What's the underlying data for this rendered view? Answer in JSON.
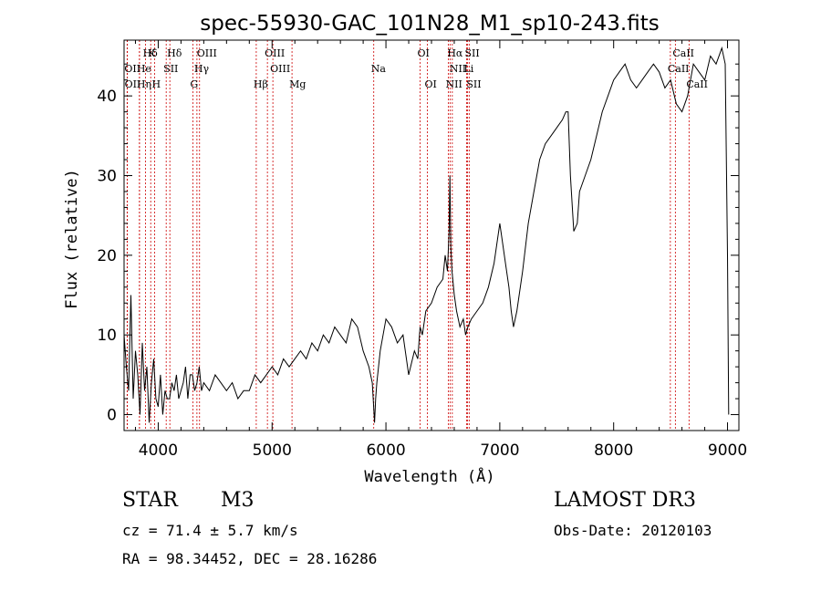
{
  "chart_data": {
    "type": "line",
    "title": "spec-55930-GAC_101N28_M1_sp10-243.fits",
    "xlabel": "Wavelength (Å)",
    "ylabel": "Flux (relative)",
    "xlim": [
      3700,
      9100
    ],
    "ylim": [
      -2,
      47
    ],
    "x_ticks": [
      4000,
      5000,
      6000,
      7000,
      8000,
      9000
    ],
    "y_ticks": [
      0,
      10,
      20,
      30,
      40
    ],
    "grid": false,
    "series": [
      {
        "name": "flux",
        "x": [
          3700,
          3720,
          3740,
          3760,
          3780,
          3800,
          3820,
          3840,
          3860,
          3880,
          3900,
          3920,
          3940,
          3960,
          3980,
          4000,
          4020,
          4040,
          4060,
          4080,
          4100,
          4120,
          4140,
          4160,
          4180,
          4200,
          4220,
          4240,
          4260,
          4280,
          4300,
          4320,
          4340,
          4360,
          4380,
          4400,
          4450,
          4500,
          4550,
          4600,
          4650,
          4700,
          4750,
          4800,
          4850,
          4900,
          4950,
          5000,
          5050,
          5100,
          5150,
          5200,
          5250,
          5300,
          5350,
          5400,
          5450,
          5500,
          5550,
          5600,
          5650,
          5700,
          5750,
          5800,
          5850,
          5880,
          5900,
          5910,
          5920,
          5950,
          6000,
          6050,
          6100,
          6150,
          6200,
          6250,
          6280,
          6300,
          6320,
          6350,
          6400,
          6450,
          6500,
          6520,
          6540,
          6555,
          6562,
          6570,
          6580,
          6600,
          6620,
          6650,
          6680,
          6700,
          6720,
          6750,
          6800,
          6850,
          6900,
          6950,
          7000,
          7050,
          7080,
          7100,
          7120,
          7150,
          7200,
          7250,
          7300,
          7350,
          7400,
          7450,
          7500,
          7550,
          7580,
          7600,
          7620,
          7650,
          7680,
          7700,
          7750,
          7800,
          7850,
          7900,
          7950,
          8000,
          8050,
          8100,
          8150,
          8200,
          8250,
          8300,
          8350,
          8400,
          8450,
          8500,
          8550,
          8600,
          8650,
          8700,
          8750,
          8800,
          8850,
          8900,
          8950,
          8980,
          9000,
          9010
        ],
        "values": [
          10,
          6,
          3,
          15,
          2,
          8,
          5,
          0,
          9,
          3,
          6,
          -1,
          4,
          7,
          2,
          1,
          5,
          0,
          3,
          2,
          2,
          4,
          3,
          5,
          2,
          3,
          4,
          6,
          2,
          5,
          5,
          3,
          4,
          6,
          3,
          4,
          3,
          5,
          4,
          3,
          4,
          2,
          3,
          3,
          5,
          4,
          5,
          6,
          5,
          7,
          6,
          7,
          8,
          7,
          9,
          8,
          10,
          9,
          11,
          10,
          9,
          12,
          11,
          8,
          6,
          4,
          -1,
          2,
          4,
          8,
          12,
          11,
          9,
          10,
          5,
          8,
          7,
          11,
          10,
          13,
          14,
          16,
          17,
          20,
          18,
          23,
          30,
          21,
          18,
          15,
          13,
          11,
          12,
          10,
          11,
          12,
          13,
          14,
          16,
          19,
          24,
          19,
          16,
          13,
          11,
          13,
          18,
          24,
          28,
          32,
          34,
          35,
          36,
          37,
          38,
          38,
          30,
          23,
          24,
          28,
          30,
          32,
          35,
          38,
          40,
          42,
          43,
          44,
          42,
          41,
          42,
          43,
          44,
          43,
          41,
          42,
          39,
          38,
          40,
          44,
          43,
          42,
          45,
          44,
          46,
          44,
          20,
          0
        ]
      }
    ],
    "emission_lines": [
      {
        "label": "Hδ",
        "wavelength": 3889,
        "row": 1
      },
      {
        "label": "K",
        "wavelength": 3934,
        "row": 1
      },
      {
        "label": "Hδ",
        "wavelength": 4102,
        "row": 1
      },
      {
        "label": "OIII",
        "wavelength": 4363,
        "row": 1
      },
      {
        "label": "OIII",
        "wavelength": 4959,
        "row": 1
      },
      {
        "label": "OI",
        "wavelength": 6300,
        "row": 1
      },
      {
        "label": "Hα",
        "wavelength": 6563,
        "row": 1
      },
      {
        "label": "SII",
        "wavelength": 6716,
        "row": 1
      },
      {
        "label": "CaII",
        "wavelength": 8542,
        "row": 1
      },
      {
        "label": "OII",
        "wavelength": 3727,
        "row": 2
      },
      {
        "label": "He",
        "wavelength": 3835,
        "row": 2
      },
      {
        "label": "SII",
        "wavelength": 4070,
        "row": 2
      },
      {
        "label": "Hγ",
        "wavelength": 4340,
        "row": 2
      },
      {
        "label": "OIII",
        "wavelength": 5007,
        "row": 2
      },
      {
        "label": "Na",
        "wavelength": 5893,
        "row": 2
      },
      {
        "label": "NII",
        "wavelength": 6583,
        "row": 2
      },
      {
        "label": "Li",
        "wavelength": 6708,
        "row": 2
      },
      {
        "label": "CaII",
        "wavelength": 8498,
        "row": 2
      },
      {
        "label": "OII",
        "wavelength": 3729,
        "row": 3
      },
      {
        "label": "Hη",
        "wavelength": 3835,
        "row": 3
      },
      {
        "label": "H",
        "wavelength": 3968,
        "row": 3
      },
      {
        "label": "G",
        "wavelength": 4304,
        "row": 3
      },
      {
        "label": "Hβ",
        "wavelength": 4861,
        "row": 3
      },
      {
        "label": "Mg",
        "wavelength": 5175,
        "row": 3
      },
      {
        "label": "OI",
        "wavelength": 6364,
        "row": 3
      },
      {
        "label": "NII",
        "wavelength": 6548,
        "row": 3
      },
      {
        "label": "SII",
        "wavelength": 6731,
        "row": 3
      },
      {
        "label": "CaII",
        "wavelength": 8662,
        "row": 3
      }
    ]
  },
  "info": {
    "class_label": "STAR",
    "subclass": "M3",
    "survey": "LAMOST DR3",
    "cz": "cz = 71.4 ± 5.7 km/s",
    "obs_date": "Obs-Date: 20120103",
    "coords": "RA =  98.34452, DEC =  28.16286"
  },
  "colors": {
    "line": "#000000",
    "marker": "#cc0000",
    "axis": "#000000"
  }
}
